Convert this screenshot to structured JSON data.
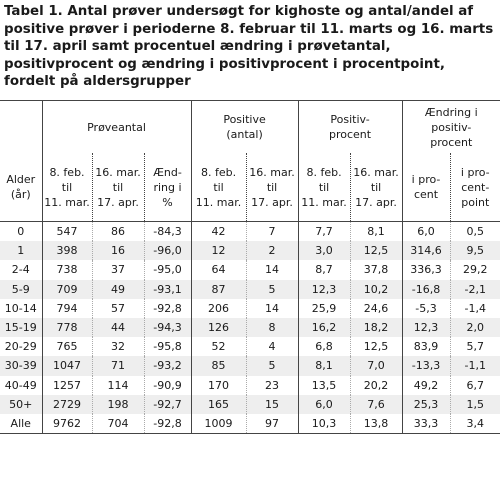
{
  "title": "Tabel 1. Antal prøver undersøgt for kighoste og antal/andel af positive prøver i perioderne 8. februar til 11. marts og 16. marts til 17. april samt procentuel ændring i prøvetantal, positivprocent og ændring i positivprocent i procentpoint, fordelt på aldersgrupper",
  "headers": {
    "group": {
      "proeveantal": "Prøveantal",
      "positive": "Positive\n(antal)",
      "positivprocent": "Positiv-\nprocent",
      "aendring": "Ændring i\npositiv-\nprocent"
    },
    "sub": {
      "alder": "Alder\n(år)",
      "p1": "8. feb.\ntil\n11. mar.",
      "p2": "16. mar.\ntil\n17. apr.",
      "aendring_pct": "Ænd-\nring i\n%",
      "pos1": "8. feb.\ntil\n11. mar.",
      "pos2": "16. mar.\ntil\n17. apr.",
      "pp1": "8. feb.\ntil\n11. mar.",
      "pp2": "16. mar.\ntil\n17. apr.",
      "i_procent": "i pro-\ncent",
      "i_procentpoint": "i pro-\ncent-\npoint"
    }
  },
  "rows": [
    [
      "0",
      "547",
      "86",
      "-84,3",
      "42",
      "7",
      "7,7",
      "8,1",
      "6,0",
      "0,5"
    ],
    [
      "1",
      "398",
      "16",
      "-96,0",
      "12",
      "2",
      "3,0",
      "12,5",
      "314,6",
      "9,5"
    ],
    [
      "2-4",
      "738",
      "37",
      "-95,0",
      "64",
      "14",
      "8,7",
      "37,8",
      "336,3",
      "29,2"
    ],
    [
      "5-9",
      "709",
      "49",
      "-93,1",
      "87",
      "5",
      "12,3",
      "10,2",
      "-16,8",
      "-2,1"
    ],
    [
      "10-14",
      "794",
      "57",
      "-92,8",
      "206",
      "14",
      "25,9",
      "24,6",
      "-5,3",
      "-1,4"
    ],
    [
      "15-19",
      "778",
      "44",
      "-94,3",
      "126",
      "8",
      "16,2",
      "18,2",
      "12,3",
      "2,0"
    ],
    [
      "20-29",
      "765",
      "32",
      "-95,8",
      "52",
      "4",
      "6,8",
      "12,5",
      "83,9",
      "5,7"
    ],
    [
      "30-39",
      "1047",
      "71",
      "-93,2",
      "85",
      "5",
      "8,1",
      "7,0",
      "-13,3",
      "-1,1"
    ],
    [
      "40-49",
      "1257",
      "114",
      "-90,9",
      "170",
      "23",
      "13,5",
      "20,2",
      "49,2",
      "6,7"
    ],
    [
      "50+",
      "2729",
      "198",
      "-92,7",
      "165",
      "15",
      "6,0",
      "7,6",
      "25,3",
      "1,5"
    ],
    [
      "Alle",
      "9762",
      "704",
      "-92,8",
      "1009",
      "97",
      "10,3",
      "13,8",
      "33,3",
      "3,4"
    ]
  ]
}
